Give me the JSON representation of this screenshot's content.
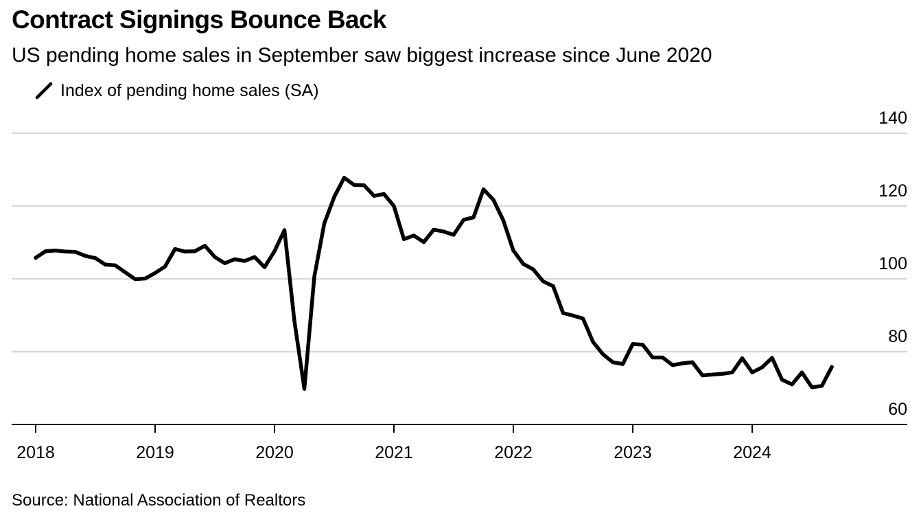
{
  "header": {
    "title": "Contract Signings Bounce Back",
    "subtitle": "US pending home sales in September saw biggest increase since June 2020"
  },
  "footer": {
    "source": "Source: National Association of Realtors"
  },
  "chart_data": {
    "type": "line",
    "title": "Contract Signings Bounce Back",
    "subtitle": "US pending home sales in September saw biggest increase since June 2020",
    "xlabel": "",
    "ylabel": "",
    "x_ticks": [
      "2018",
      "2019",
      "2020",
      "2021",
      "2022",
      "2023",
      "2024"
    ],
    "y_ticks": [
      60,
      80,
      100,
      120,
      140
    ],
    "ylim": [
      60,
      140
    ],
    "xlim": [
      "2018-01",
      "2024-12"
    ],
    "grid": true,
    "legend_position": "top-left",
    "line_color": "#000000",
    "gridline_color": "#d9d9d9",
    "series": [
      {
        "name": "Index of pending home sales (SA)",
        "x": [
          "2018-01",
          "2018-02",
          "2018-03",
          "2018-04",
          "2018-05",
          "2018-06",
          "2018-07",
          "2018-08",
          "2018-09",
          "2018-10",
          "2018-11",
          "2018-12",
          "2019-01",
          "2019-02",
          "2019-03",
          "2019-04",
          "2019-05",
          "2019-06",
          "2019-07",
          "2019-08",
          "2019-09",
          "2019-10",
          "2019-11",
          "2019-12",
          "2020-01",
          "2020-02",
          "2020-03",
          "2020-04",
          "2020-05",
          "2020-06",
          "2020-07",
          "2020-08",
          "2020-09",
          "2020-10",
          "2020-11",
          "2020-12",
          "2021-01",
          "2021-02",
          "2021-03",
          "2021-04",
          "2021-05",
          "2021-06",
          "2021-07",
          "2021-08",
          "2021-09",
          "2021-10",
          "2021-11",
          "2021-12",
          "2022-01",
          "2022-02",
          "2022-03",
          "2022-04",
          "2022-05",
          "2022-06",
          "2022-07",
          "2022-08",
          "2022-09",
          "2022-10",
          "2022-11",
          "2022-12",
          "2023-01",
          "2023-02",
          "2023-03",
          "2023-04",
          "2023-05",
          "2023-06",
          "2023-07",
          "2023-08",
          "2023-09",
          "2023-10",
          "2023-11",
          "2023-12",
          "2024-01",
          "2024-02",
          "2024-03",
          "2024-04",
          "2024-05",
          "2024-06",
          "2024-07",
          "2024-08",
          "2024-09"
        ],
        "values": [
          105.8,
          107.6,
          107.8,
          107.5,
          107.4,
          106.3,
          105.7,
          103.9,
          103.7,
          101.8,
          99.9,
          100.1,
          101.6,
          103.4,
          108.2,
          107.5,
          107.6,
          109.1,
          106.0,
          104.3,
          105.4,
          104.9,
          106.0,
          103.2,
          107.6,
          113.4,
          88.4,
          69.8,
          100.6,
          115.2,
          122.5,
          127.8,
          125.8,
          125.7,
          122.8,
          123.3,
          120.0,
          110.9,
          111.9,
          110.1,
          113.5,
          113.0,
          112.1,
          116.2,
          116.9,
          124.6,
          121.7,
          116.0,
          107.8,
          104.1,
          102.6,
          99.3,
          98.0,
          90.6,
          89.9,
          89.1,
          82.7,
          79.3,
          77.1,
          76.6,
          82.1,
          81.9,
          78.4,
          78.4,
          76.3,
          76.8,
          77.1,
          73.5,
          73.7,
          73.9,
          74.3,
          78.2,
          74.3,
          75.7,
          78.3,
          72.3,
          71.0,
          74.3,
          70.2,
          70.6,
          75.8
        ]
      }
    ]
  }
}
